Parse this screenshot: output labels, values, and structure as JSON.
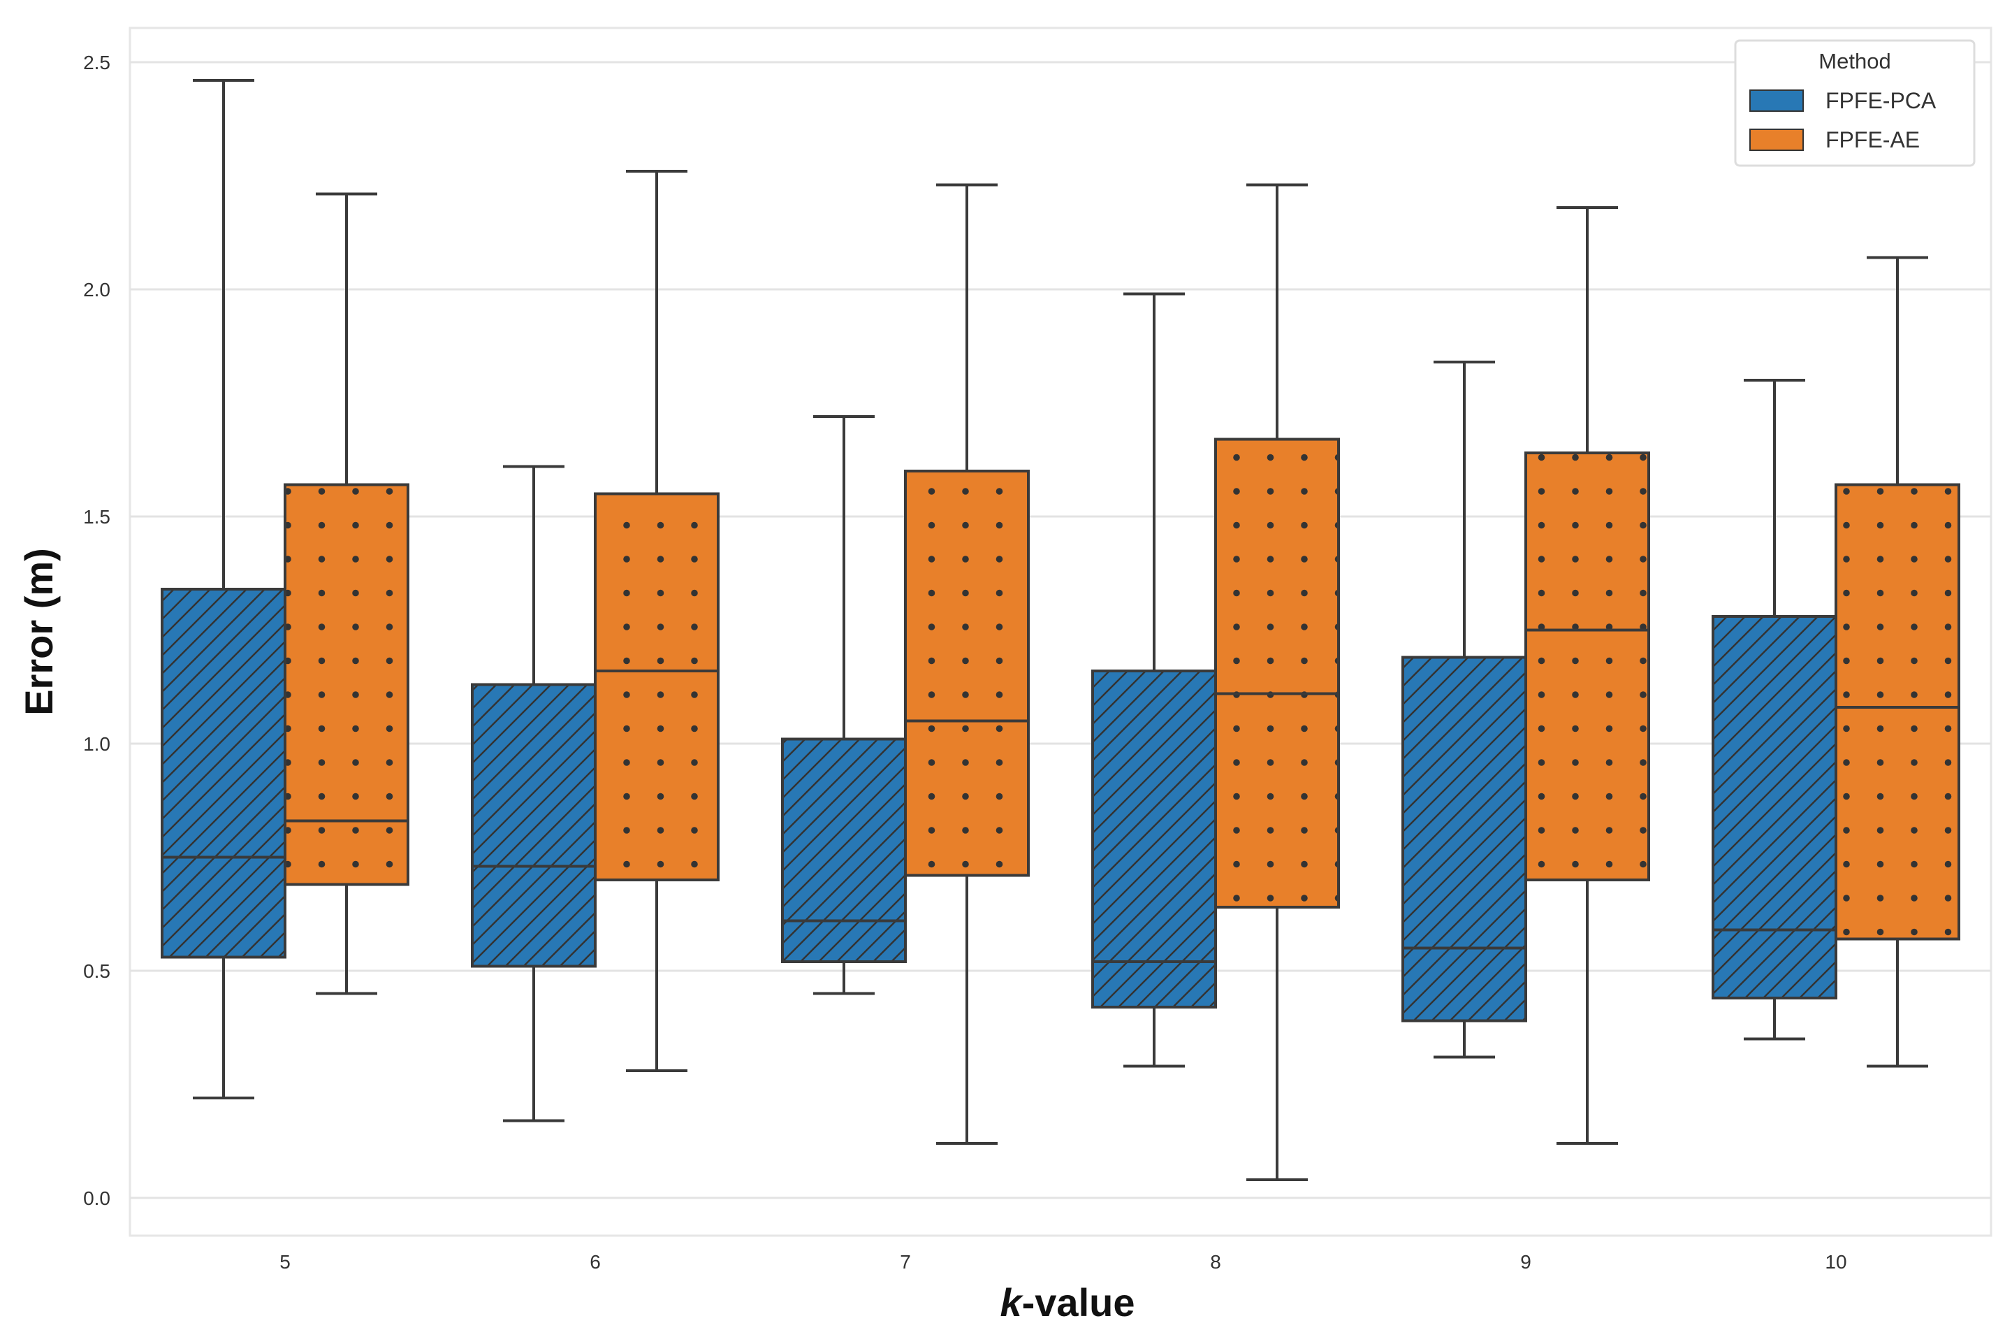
{
  "chart_data": {
    "type": "boxplot",
    "title": "",
    "xlabel_italic": "k",
    "xlabel_rest": "-value",
    "ylabel": "Error (m)",
    "ylim": [
      -0.08,
      2.6
    ],
    "yticks": [
      0.0,
      0.5,
      1.0,
      1.5,
      2.0,
      2.5
    ],
    "ytick_labels": [
      "0.0",
      "0.5",
      "1.0",
      "1.5",
      "2.0",
      "2.5"
    ],
    "categories": [
      "5",
      "6",
      "7",
      "8",
      "9",
      "10"
    ],
    "grid": true,
    "legend": {
      "title": "Method",
      "placement": "top-right"
    },
    "series": [
      {
        "name": "FPFE-PCA",
        "color": "#2878b5",
        "hatch": "diagonal",
        "boxes": [
          {
            "whislo": 0.22,
            "q1": 0.53,
            "med": 0.75,
            "q3": 1.34,
            "whishi": 2.46
          },
          {
            "whislo": 0.17,
            "q1": 0.51,
            "med": 0.73,
            "q3": 1.13,
            "whishi": 1.61
          },
          {
            "whislo": 0.45,
            "q1": 0.52,
            "med": 0.61,
            "q3": 1.01,
            "whishi": 1.72
          },
          {
            "whislo": 0.29,
            "q1": 0.42,
            "med": 0.52,
            "q3": 1.16,
            "whishi": 1.99
          },
          {
            "whislo": 0.31,
            "q1": 0.39,
            "med": 0.55,
            "q3": 1.19,
            "whishi": 1.84
          },
          {
            "whislo": 0.35,
            "q1": 0.44,
            "med": 0.59,
            "q3": 1.28,
            "whishi": 1.8
          }
        ]
      },
      {
        "name": "FPFE-AE",
        "color": "#e8802a",
        "hatch": "dots",
        "boxes": [
          {
            "whislo": 0.45,
            "q1": 0.69,
            "med": 0.83,
            "q3": 1.57,
            "whishi": 2.21
          },
          {
            "whislo": 0.28,
            "q1": 0.7,
            "med": 1.16,
            "q3": 1.55,
            "whishi": 2.26
          },
          {
            "whislo": 0.12,
            "q1": 0.71,
            "med": 1.05,
            "q3": 1.6,
            "whishi": 2.23
          },
          {
            "whislo": 0.04,
            "q1": 0.64,
            "med": 1.11,
            "q3": 1.67,
            "whishi": 2.23
          },
          {
            "whislo": 0.12,
            "q1": 0.7,
            "med": 1.25,
            "q3": 1.64,
            "whishi": 2.18
          },
          {
            "whislo": 0.29,
            "q1": 0.57,
            "med": 1.08,
            "q3": 1.57,
            "whishi": 2.07
          }
        ]
      }
    ]
  }
}
